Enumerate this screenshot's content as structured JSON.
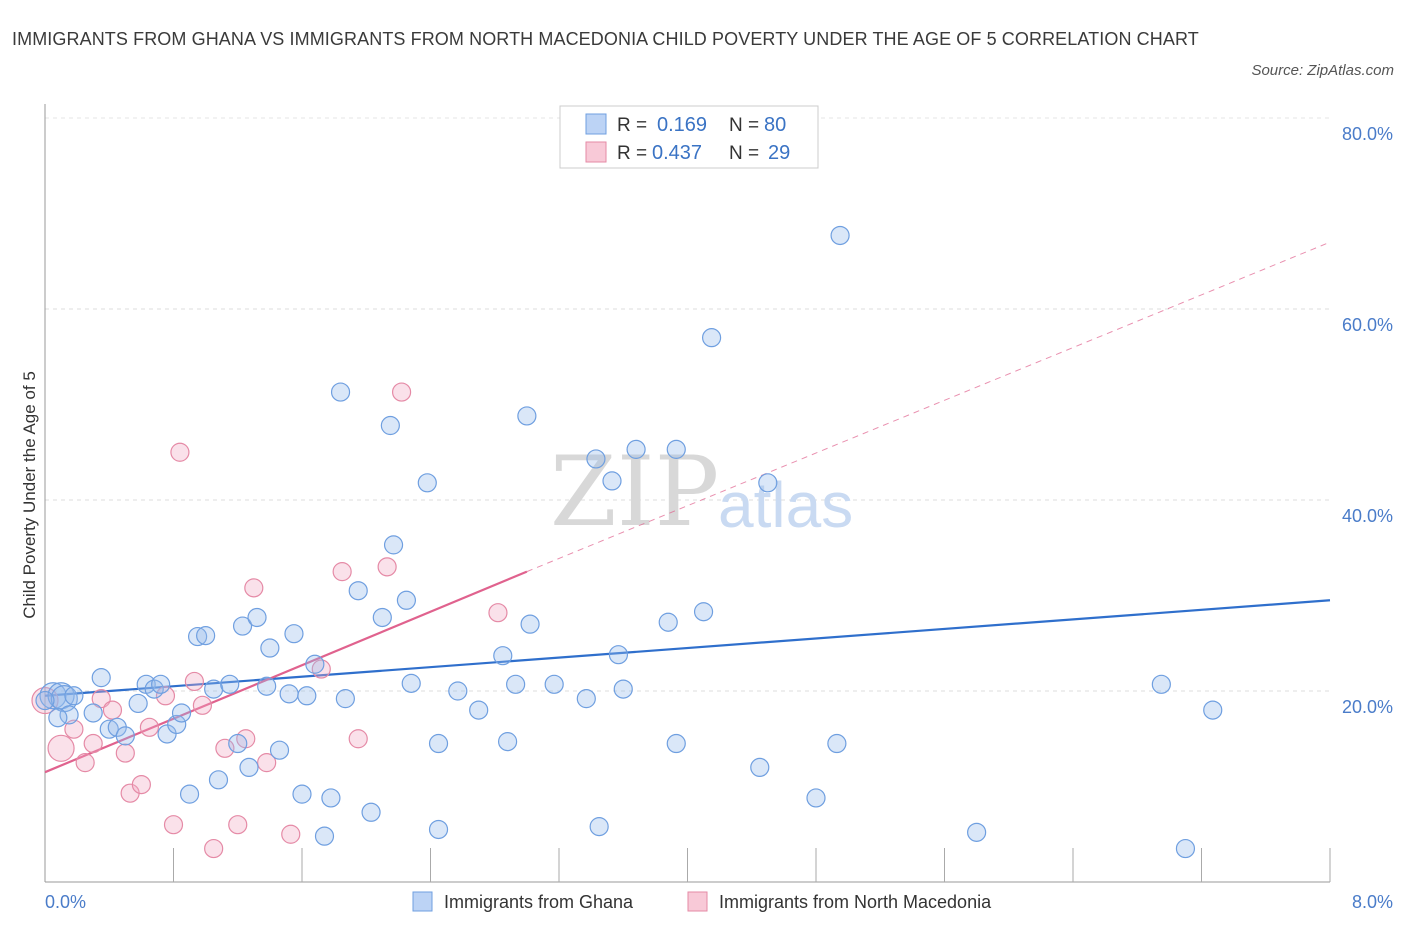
{
  "title": "IMMIGRANTS FROM GHANA VS IMMIGRANTS FROM NORTH MACEDONIA CHILD POVERTY UNDER THE AGE OF 5 CORRELATION CHART",
  "source": "Source: ZipAtlas.com",
  "watermark": {
    "zip": "ZIP",
    "atlas": "atlas"
  },
  "legend_top": [
    {
      "r_label": "R =",
      "r_value": "0.169",
      "n_label": "N =",
      "n_value": "80"
    },
    {
      "r_label": "R =",
      "r_value": "0.437",
      "n_label": "N =",
      "n_value": "29"
    }
  ],
  "colors": {
    "blue": "#6f9fe0",
    "blue_fill": "rgba(150,185,235,0.35)",
    "blue_line": "#2f6fcc",
    "pink": "#e58aa6",
    "pink_fill": "rgba(240,170,195,0.35)",
    "pink_line": "#e0628e",
    "tick": "#4a7cc9"
  },
  "chart_data": {
    "type": "scatter",
    "title": "IMMIGRANTS FROM GHANA VS IMMIGRANTS FROM NORTH MACEDONIA CHILD POVERTY UNDER THE AGE OF 5 CORRELATION CHART",
    "xlabel": "",
    "ylabel": "Child Poverty Under the Age of 5",
    "xlim": [
      0,
      8
    ],
    "ylim": [
      0,
      80
    ],
    "x_tick_labels": [
      "0.0%",
      "8.0%"
    ],
    "y_ticks": [
      20,
      40,
      60,
      80
    ],
    "y_tick_labels": [
      "20.0%",
      "40.0%",
      "60.0%",
      "80.0%"
    ],
    "grid": true,
    "legend_position": "top-center",
    "series": [
      {
        "name": "Immigrants from Ghana",
        "color": "#6f9fe0",
        "trend": {
          "x": [
            0,
            8
          ],
          "y": [
            19.5,
            29.5
          ]
        },
        "points": [
          [
            0.05,
            19.5
          ],
          [
            0.1,
            19.5
          ],
          [
            0.12,
            19.2
          ],
          [
            0.15,
            17.5
          ],
          [
            0.18,
            19.5
          ],
          [
            0.3,
            17.7
          ],
          [
            0.35,
            21.4
          ],
          [
            0.4,
            16.0
          ],
          [
            0.45,
            16.2
          ],
          [
            0.5,
            15.3
          ],
          [
            0.58,
            18.7
          ],
          [
            0.63,
            20.7
          ],
          [
            0.68,
            20.2
          ],
          [
            0.72,
            20.7
          ],
          [
            0.76,
            15.5
          ],
          [
            0.82,
            16.5
          ],
          [
            0.85,
            17.7
          ],
          [
            0.9,
            9.2
          ],
          [
            0.95,
            25.7
          ],
          [
            1.0,
            25.8
          ],
          [
            1.05,
            20.2
          ],
          [
            1.08,
            10.7
          ],
          [
            1.15,
            20.7
          ],
          [
            1.2,
            14.5
          ],
          [
            1.23,
            26.8
          ],
          [
            1.27,
            12.0
          ],
          [
            1.32,
            27.7
          ],
          [
            1.38,
            20.5
          ],
          [
            1.4,
            24.5
          ],
          [
            1.46,
            13.8
          ],
          [
            1.52,
            19.7
          ],
          [
            1.55,
            26.0
          ],
          [
            1.6,
            9.2
          ],
          [
            1.63,
            19.5
          ],
          [
            1.68,
            22.8
          ],
          [
            1.74,
            4.8
          ],
          [
            1.78,
            8.8
          ],
          [
            1.84,
            51.3
          ],
          [
            1.87,
            19.2
          ],
          [
            1.95,
            30.5
          ],
          [
            2.03,
            7.3
          ],
          [
            2.1,
            27.7
          ],
          [
            2.15,
            47.8
          ],
          [
            2.17,
            35.3
          ],
          [
            2.25,
            29.5
          ],
          [
            2.28,
            20.8
          ],
          [
            2.38,
            41.8
          ],
          [
            2.45,
            14.5
          ],
          [
            2.45,
            5.5
          ],
          [
            2.57,
            20.0
          ],
          [
            2.7,
            18.0
          ],
          [
            2.85,
            23.7
          ],
          [
            2.88,
            14.7
          ],
          [
            2.93,
            20.7
          ],
          [
            3.0,
            48.8
          ],
          [
            3.02,
            27.0
          ],
          [
            3.17,
            20.7
          ],
          [
            3.37,
            19.2
          ],
          [
            3.43,
            44.3
          ],
          [
            3.45,
            5.8
          ],
          [
            3.53,
            42.0
          ],
          [
            3.57,
            23.8
          ],
          [
            3.6,
            20.2
          ],
          [
            3.68,
            45.3
          ],
          [
            3.88,
            27.2
          ],
          [
            3.93,
            14.5
          ],
          [
            3.93,
            45.3
          ],
          [
            4.1,
            28.3
          ],
          [
            4.45,
            12.0
          ],
          [
            4.5,
            41.8
          ],
          [
            4.8,
            8.8
          ],
          [
            4.93,
            14.5
          ],
          [
            4.95,
            67.7
          ],
          [
            4.15,
            57.0
          ],
          [
            5.8,
            5.2
          ],
          [
            6.95,
            20.7
          ],
          [
            7.1,
            3.5
          ],
          [
            7.27,
            18.0
          ],
          [
            0.0,
            19.0
          ],
          [
            0.08,
            17.2
          ]
        ]
      },
      {
        "name": "Immigrants from North Macedonia",
        "color": "#e58aa6",
        "trend": {
          "x": [
            0,
            3.0
          ],
          "y": [
            11.5,
            32.5
          ]
        },
        "trend_extension": {
          "x": [
            3.0,
            8
          ],
          "y": [
            32.5,
            67
          ]
        },
        "points": [
          [
            0.0,
            19.0
          ],
          [
            0.1,
            14.0
          ],
          [
            0.18,
            16.0
          ],
          [
            0.25,
            12.5
          ],
          [
            0.3,
            14.5
          ],
          [
            0.35,
            19.2
          ],
          [
            0.42,
            18.0
          ],
          [
            0.5,
            13.5
          ],
          [
            0.53,
            9.3
          ],
          [
            0.6,
            10.2
          ],
          [
            0.65,
            16.2
          ],
          [
            0.75,
            19.5
          ],
          [
            0.8,
            6.0
          ],
          [
            0.84,
            45.0
          ],
          [
            0.93,
            21.0
          ],
          [
            0.98,
            18.5
          ],
          [
            1.05,
            3.5
          ],
          [
            1.12,
            14.0
          ],
          [
            1.2,
            6.0
          ],
          [
            1.25,
            15.0
          ],
          [
            1.3,
            30.8
          ],
          [
            1.38,
            12.5
          ],
          [
            1.53,
            5.0
          ],
          [
            1.72,
            22.3
          ],
          [
            1.85,
            32.5
          ],
          [
            1.95,
            15.0
          ],
          [
            2.13,
            33.0
          ],
          [
            2.22,
            51.3
          ],
          [
            2.82,
            28.2
          ]
        ]
      }
    ]
  },
  "bottom_legend": [
    "Immigrants from Ghana",
    "Immigrants from North Macedonia"
  ]
}
